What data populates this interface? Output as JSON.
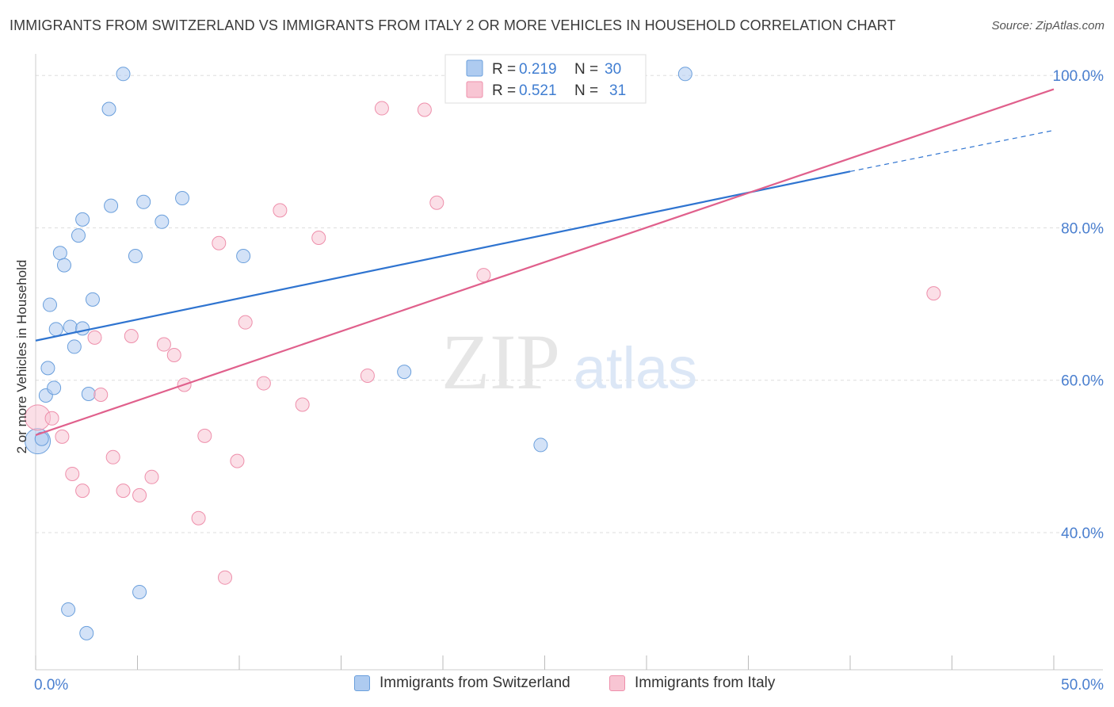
{
  "title": "IMMIGRANTS FROM SWITZERLAND VS IMMIGRANTS FROM ITALY 2 OR MORE VEHICLES IN HOUSEHOLD CORRELATION CHART",
  "source": "Source: ZipAtlas.com",
  "watermark": {
    "zip": "ZIP",
    "atlas": "atlas"
  },
  "colors": {
    "blue_fill": "#aecbf0",
    "blue_stroke": "#6a9fdc",
    "blue_line": "#2f74d0",
    "pink_fill": "#f8c5d3",
    "pink_stroke": "#ee8fab",
    "pink_line": "#e0608c",
    "tick_label": "#4a7fcf",
    "grid": "#dddddd"
  },
  "legend": {
    "rows": [
      {
        "r_label": "R = ",
        "r_value": "0.219",
        "n_label": "N = ",
        "n_value": "30"
      },
      {
        "r_label": "R = ",
        "r_value": "0.521",
        "n_label": "N = ",
        "n_value": "31"
      }
    ]
  },
  "chart_data": {
    "type": "scatter",
    "xlabel": "",
    "ylabel": "2 or more Vehicles in Household",
    "xlim": [
      0,
      50
    ],
    "ylim": [
      22,
      102
    ],
    "x_tick_labels": [
      {
        "value": 0,
        "label": "0.0%"
      },
      {
        "value": 50,
        "label": "50.0%"
      }
    ],
    "y_tick_labels": [
      {
        "value": 40,
        "label": "40.0%"
      },
      {
        "value": 60,
        "label": "60.0%"
      },
      {
        "value": 80,
        "label": "80.0%"
      },
      {
        "value": 100,
        "label": "100.0%"
      }
    ],
    "grid": true,
    "legend_position": "top-center",
    "series": [
      {
        "name": "Immigrants from Switzerland",
        "color": "blue",
        "trend": {
          "x": [
            0,
            40
          ],
          "y": [
            65.2,
            87.4
          ],
          "dashed_to": [
            50,
            92.8
          ]
        },
        "points": [
          {
            "x": 0.1,
            "y": 52.0,
            "big": true
          },
          {
            "x": 0.3,
            "y": 52.3
          },
          {
            "x": 0.5,
            "y": 58.0
          },
          {
            "x": 0.6,
            "y": 61.6
          },
          {
            "x": 0.7,
            "y": 69.9
          },
          {
            "x": 0.9,
            "y": 59.0
          },
          {
            "x": 1.0,
            "y": 66.7
          },
          {
            "x": 1.2,
            "y": 76.7
          },
          {
            "x": 1.4,
            "y": 75.1
          },
          {
            "x": 1.7,
            "y": 67.0
          },
          {
            "x": 1.9,
            "y": 64.4
          },
          {
            "x": 2.1,
            "y": 79.0
          },
          {
            "x": 2.3,
            "y": 66.8
          },
          {
            "x": 2.3,
            "y": 81.1
          },
          {
            "x": 2.5,
            "y": 26.8
          },
          {
            "x": 2.6,
            "y": 58.2
          },
          {
            "x": 2.8,
            "y": 70.6
          },
          {
            "x": 3.6,
            "y": 95.6
          },
          {
            "x": 3.7,
            "y": 82.9
          },
          {
            "x": 4.3,
            "y": 100.2
          },
          {
            "x": 4.9,
            "y": 76.3
          },
          {
            "x": 5.1,
            "y": 32.2
          },
          {
            "x": 5.3,
            "y": 83.4
          },
          {
            "x": 6.2,
            "y": 80.8
          },
          {
            "x": 7.2,
            "y": 83.9
          },
          {
            "x": 10.2,
            "y": 76.3
          },
          {
            "x": 18.1,
            "y": 61.1
          },
          {
            "x": 24.8,
            "y": 51.5
          },
          {
            "x": 1.6,
            "y": 29.9
          },
          {
            "x": 31.9,
            "y": 100.2
          }
        ]
      },
      {
        "name": "Immigrants from Italy",
        "color": "pink",
        "trend": {
          "x": [
            0,
            50
          ],
          "y": [
            52.8,
            98.2
          ]
        },
        "points": [
          {
            "x": 0.1,
            "y": 55.1,
            "big": true
          },
          {
            "x": 0.8,
            "y": 55.0
          },
          {
            "x": 1.3,
            "y": 52.6
          },
          {
            "x": 1.8,
            "y": 47.7
          },
          {
            "x": 2.3,
            "y": 45.5
          },
          {
            "x": 2.9,
            "y": 65.6
          },
          {
            "x": 3.2,
            "y": 58.1
          },
          {
            "x": 3.8,
            "y": 49.9
          },
          {
            "x": 4.3,
            "y": 45.5
          },
          {
            "x": 4.7,
            "y": 65.8
          },
          {
            "x": 5.1,
            "y": 44.9
          },
          {
            "x": 5.7,
            "y": 47.3
          },
          {
            "x": 6.3,
            "y": 64.7
          },
          {
            "x": 6.8,
            "y": 63.3
          },
          {
            "x": 7.3,
            "y": 59.4
          },
          {
            "x": 8.0,
            "y": 41.9
          },
          {
            "x": 8.3,
            "y": 52.7
          },
          {
            "x": 9.0,
            "y": 78.0
          },
          {
            "x": 9.3,
            "y": 34.1
          },
          {
            "x": 9.9,
            "y": 49.4
          },
          {
            "x": 10.3,
            "y": 67.6
          },
          {
            "x": 11.2,
            "y": 59.6
          },
          {
            "x": 12.0,
            "y": 82.3
          },
          {
            "x": 13.1,
            "y": 56.8
          },
          {
            "x": 13.9,
            "y": 78.7
          },
          {
            "x": 16.3,
            "y": 60.6
          },
          {
            "x": 17.0,
            "y": 95.7
          },
          {
            "x": 19.1,
            "y": 95.5
          },
          {
            "x": 19.7,
            "y": 83.3
          },
          {
            "x": 22.0,
            "y": 73.8
          },
          {
            "x": 44.1,
            "y": 71.4
          }
        ]
      }
    ]
  }
}
